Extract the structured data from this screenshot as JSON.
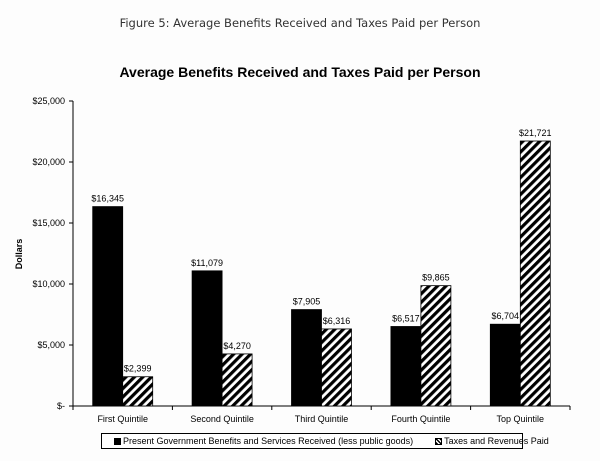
{
  "figure_caption": "Figure 5: Average Benefits Received and Taxes Paid per Person",
  "chart_data": {
    "type": "bar",
    "title": "Average Benefits Received and Taxes Paid per Person",
    "xlabel": "",
    "ylabel": "Dollars",
    "ylim": [
      0,
      25000
    ],
    "yticks": [
      0,
      5000,
      10000,
      15000,
      20000,
      25000
    ],
    "ytick_labels": [
      "$-",
      "$5,000",
      "$10,000",
      "$15,000",
      "$20,000",
      "$25,000"
    ],
    "grid": false,
    "legend_position": "bottom",
    "categories": [
      "First Quintile",
      "Second Quintile",
      "Third Quintile",
      "Fourth Quintile",
      "Top Quintile"
    ],
    "series": [
      {
        "name": "Present Government Benefits and Services Received (less public goods)",
        "fill": "solid",
        "color": "#000000",
        "values": [
          16345,
          11079,
          7905,
          6517,
          6704
        ],
        "labels": [
          "$16,345",
          "$11,079",
          "$7,905",
          "$6,517",
          "$6,704"
        ]
      },
      {
        "name": "Taxes and Revenues Paid",
        "fill": "diagonal-hatch",
        "color": "#000000",
        "values": [
          2399,
          4270,
          6316,
          9865,
          21721
        ],
        "labels": [
          "$2,399",
          "$4,270",
          "$6,316",
          "$9,865",
          "$21,721"
        ]
      }
    ]
  }
}
